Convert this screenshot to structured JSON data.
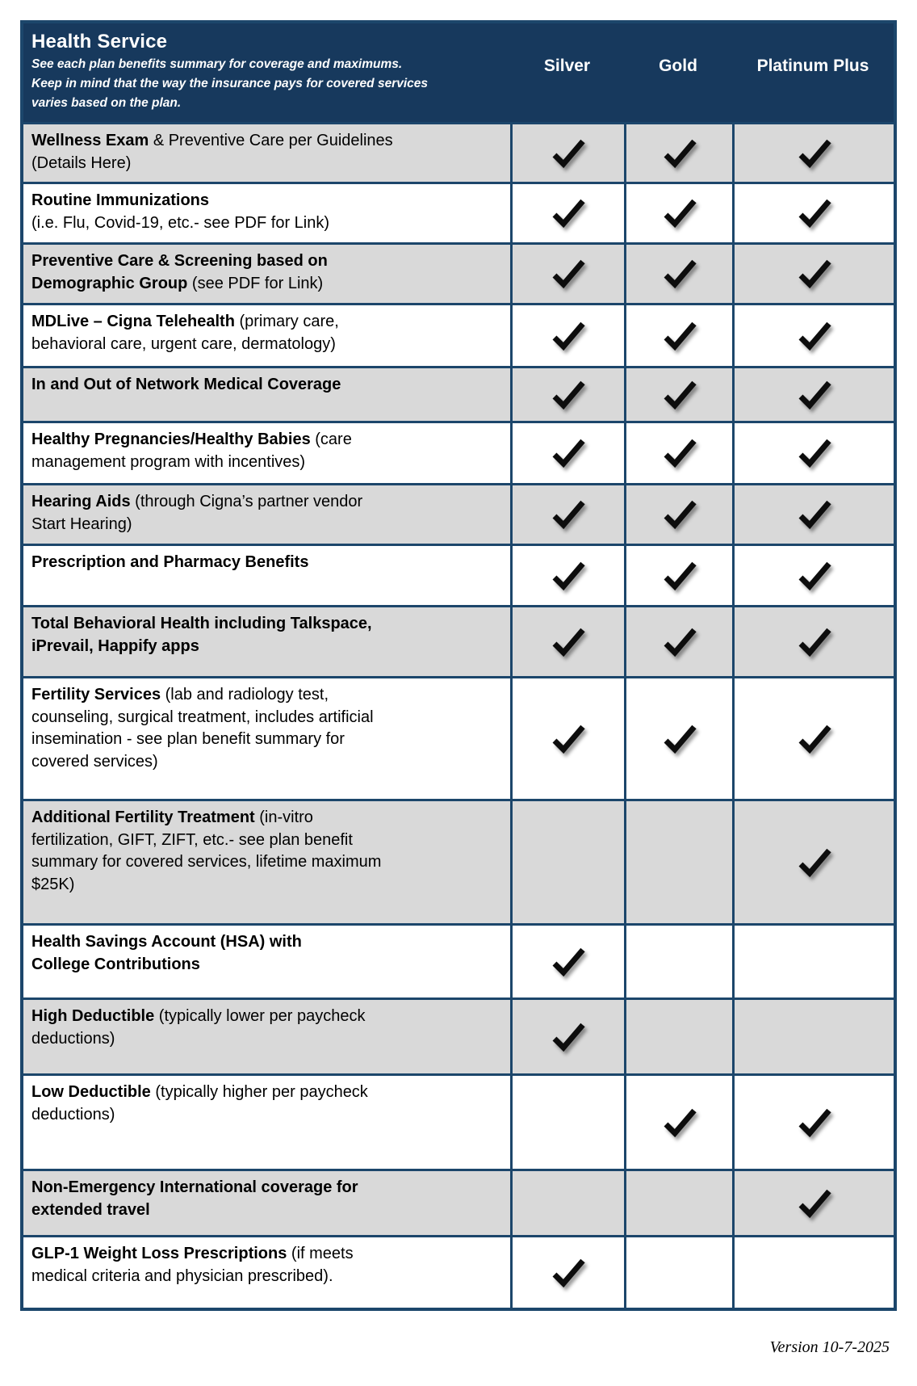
{
  "header": {
    "title": "Health Service",
    "subtitle": "See each plan benefits summary for coverage and maximums.\nKeep in mind that the way the insurance pays for covered services\nvaries based on the plan.",
    "columns": [
      "Silver",
      "Gold",
      "Platinum Plus"
    ]
  },
  "rows": [
    {
      "bold": "Wellness Exam",
      "rest": " & Preventive Care per Guidelines\n(Details Here)",
      "checks": [
        true,
        true,
        true
      ]
    },
    {
      "bold": "Routine Immunizations",
      "rest": "\n(i.e. Flu, Covid-19, etc.- see PDF for Link)",
      "checks": [
        true,
        true,
        true
      ]
    },
    {
      "bold": "Preventive Care & Screening based on\nDemographic Group",
      "rest": " (see PDF for Link)",
      "checks": [
        true,
        true,
        true
      ]
    },
    {
      "bold": "MDLive – Cigna Telehealth",
      "rest": " (primary care,\nbehavioral care, urgent care, dermatology)",
      "checks": [
        true,
        true,
        true
      ]
    },
    {
      "bold": "In and Out of Network Medical Coverage",
      "rest": "",
      "checks": [
        true,
        true,
        true
      ]
    },
    {
      "bold": "Healthy Pregnancies/Healthy Babies",
      "rest": " (care\nmanagement program with incentives)",
      "checks": [
        true,
        true,
        true
      ]
    },
    {
      "bold": "Hearing Aids",
      "rest": " (through Cigna’s partner vendor\nStart Hearing)",
      "checks": [
        true,
        true,
        true
      ]
    },
    {
      "bold": "Prescription and Pharmacy Benefits",
      "rest": "",
      "checks": [
        true,
        true,
        true
      ]
    },
    {
      "bold": "Total Behavioral Health including Talkspace,\niPrevail, Happify apps",
      "rest": "",
      "checks": [
        true,
        true,
        true
      ]
    },
    {
      "bold": "Fertility Services",
      "rest": " (lab and radiology test,\ncounseling, surgical treatment, includes artificial\ninsemination - see plan benefit summary for\ncovered services)",
      "checks": [
        true,
        true,
        true
      ]
    },
    {
      "bold": "Additional Fertility Treatment",
      "rest": " (in-vitro\nfertilization, GIFT, ZIFT, etc.- see plan benefit\nsummary for covered services, lifetime maximum\n$25K)",
      "checks": [
        false,
        false,
        true
      ]
    },
    {
      "bold": "Health Savings Account (HSA) with\nCollege Contributions",
      "rest": "",
      "checks": [
        true,
        false,
        false
      ]
    },
    {
      "bold": "High Deductible",
      "rest": " (typically lower per paycheck\ndeductions)",
      "checks": [
        true,
        false,
        false
      ]
    },
    {
      "bold": "Low Deductible",
      "rest": " (typically higher per paycheck\ndeductions)",
      "checks": [
        false,
        true,
        true
      ]
    },
    {
      "bold": "Non-Emergency International coverage for\nextended travel",
      "rest": "",
      "checks": [
        false,
        false,
        true
      ]
    },
    {
      "bold": "GLP-1 Weight Loss Prescriptions",
      "rest": " (if meets\nmedical criteria and physician prescribed).",
      "checks": [
        true,
        false,
        false
      ]
    }
  ],
  "footer": {
    "version": "Version 10-7-2025"
  },
  "colors": {
    "header_bg": "#17395d",
    "border": "#1c466b",
    "row_gray": "#d9d9d9",
    "row_white": "#ffffff",
    "check": "#0d0d0d"
  }
}
